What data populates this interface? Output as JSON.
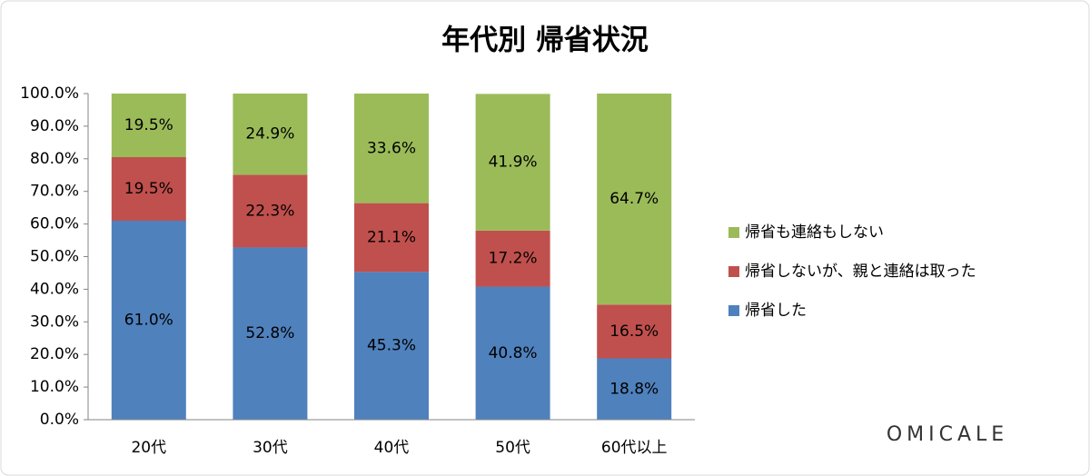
{
  "chart_data": {
    "type": "stacked-bar",
    "title": "年代別 帰省状況",
    "categories": [
      "20代",
      "30代",
      "40代",
      "50代",
      "60代以上"
    ],
    "series": [
      {
        "name": "帰省した",
        "color": "#4f81bd",
        "values": [
          61.0,
          52.8,
          45.3,
          40.8,
          18.8
        ],
        "value_labels": [
          "61.0%",
          "52.8%",
          "45.3%",
          "40.8%",
          "18.8%"
        ]
      },
      {
        "name": "帰省しないが、親と連絡は取った",
        "color": "#c0504d",
        "values": [
          19.5,
          22.3,
          21.1,
          17.2,
          16.5
        ],
        "value_labels": [
          "19.5%",
          "22.3%",
          "21.1%",
          "17.2%",
          "16.5%"
        ]
      },
      {
        "name": "帰省も連絡もしない",
        "color": "#9bbb59",
        "values": [
          19.5,
          24.9,
          33.6,
          41.9,
          64.7
        ],
        "value_labels": [
          "19.5%",
          "24.9%",
          "33.6%",
          "41.9%",
          "64.7%"
        ]
      }
    ],
    "ylim": [
      0,
      100
    ],
    "yticks": [
      {
        "value": 0,
        "label": "0.0%"
      },
      {
        "value": 10,
        "label": "10.0%"
      },
      {
        "value": 20,
        "label": "20.0%"
      },
      {
        "value": 30,
        "label": "30.0%"
      },
      {
        "value": 40,
        "label": "40.0%"
      },
      {
        "value": 50,
        "label": "50.0%"
      },
      {
        "value": 60,
        "label": "60.0%"
      },
      {
        "value": 70,
        "label": "70.0%"
      },
      {
        "value": 80,
        "label": "80.0%"
      },
      {
        "value": 90,
        "label": "90.0%"
      },
      {
        "value": 100,
        "label": "100.0%"
      }
    ],
    "grid": false,
    "legend": "right"
  },
  "logo": "OMICALE"
}
